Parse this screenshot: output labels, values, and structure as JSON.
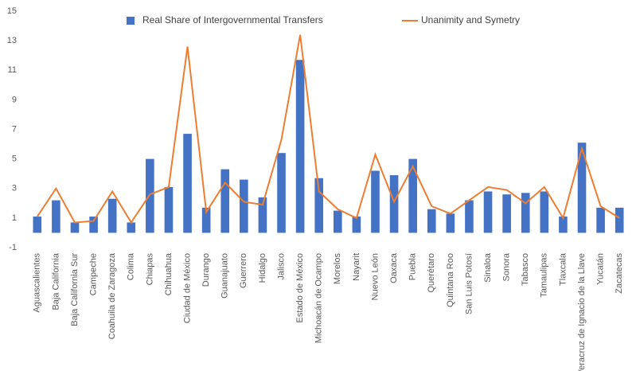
{
  "chart_data": {
    "type": "bar-line",
    "categories": [
      "Aguascalientes",
      "Baja California",
      "Baja California Sur",
      "Campeche",
      "Coahuila de Zaragoza",
      "Colima",
      "Chiapas",
      "Chihuahua",
      "Ciudad de México",
      "Durango",
      "Guanajuato",
      "Guerrero",
      "Hidalgo",
      "Jalisco",
      "Estado de México",
      "Michoacán de Ocampo",
      "Morelos",
      "Nayarit",
      "Nuevo León",
      "Oaxaca",
      "Puebla",
      "Querétaro",
      "Quintana Roo",
      "San Luis Potosí",
      "Sinaloa",
      "Sonora",
      "Tabasco",
      "Tamaulipas",
      "Tlaxcala",
      "Veracruz de Ignacio de la Llave",
      "Yucatán",
      "Zacatecas"
    ],
    "series": [
      {
        "name": "Real Share of Intergovernmental Transfers",
        "type": "bar",
        "color": "#4472c4",
        "values": [
          1.1,
          2.2,
          0.7,
          1.1,
          2.3,
          0.7,
          5.0,
          3.1,
          6.7,
          1.7,
          4.3,
          3.6,
          2.4,
          5.4,
          11.7,
          3.7,
          1.5,
          1.1,
          4.2,
          3.9,
          5.0,
          1.6,
          1.3,
          2.2,
          2.8,
          2.6,
          2.7,
          2.8,
          1.1,
          6.1,
          1.7,
          1.7
        ]
      },
      {
        "name": "Unanimity and Symetry",
        "type": "line",
        "color": "#ed7d31",
        "values": [
          1.1,
          3.0,
          0.7,
          0.8,
          2.8,
          0.7,
          2.6,
          3.1,
          12.6,
          1.4,
          3.4,
          2.1,
          1.9,
          6.3,
          13.4,
          2.8,
          1.6,
          1.0,
          5.3,
          2.1,
          4.5,
          1.8,
          1.3,
          2.2,
          3.1,
          2.9,
          2.0,
          3.1,
          1.0,
          5.7,
          1.8,
          1.0
        ]
      }
    ],
    "ylim": [
      -1,
      15
    ],
    "yticks": [
      -1,
      1,
      3,
      5,
      7,
      9,
      11,
      13,
      15
    ],
    "grid": false,
    "legend": "top"
  }
}
